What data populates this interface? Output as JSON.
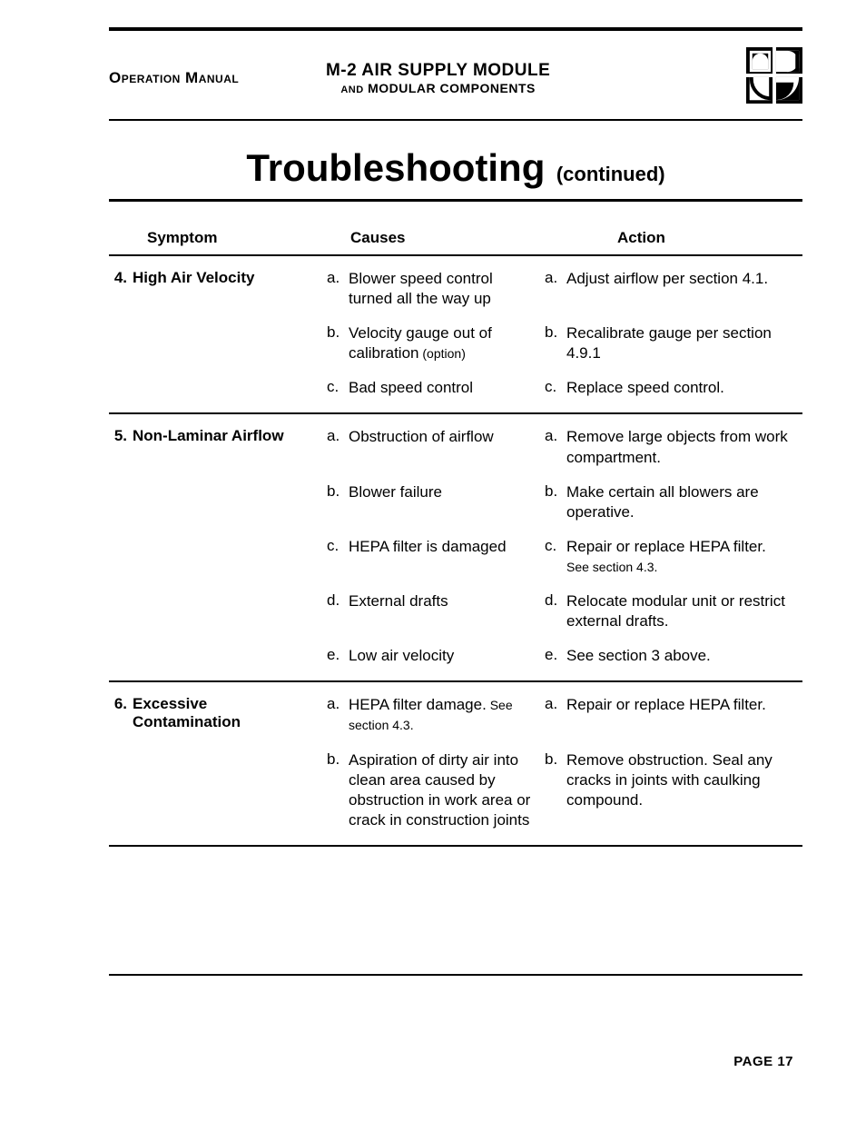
{
  "header": {
    "left": "Operation Manual",
    "center_line1": "M-2 AIR SUPPLY MODULE",
    "center_line2_and": "AND",
    "center_line2_rest": " MODULAR COMPONENTS"
  },
  "title": {
    "main": "Troubleshooting",
    "suffix": "(continued)"
  },
  "columns": {
    "symptom": "Symptom",
    "causes": "Causes",
    "action": "Action"
  },
  "sections": [
    {
      "num": "4.",
      "symptom": "High Air Velocity",
      "rows": [
        {
          "letter": "a.",
          "cause": "Blower speed control turned all the way up",
          "action": "Adjust airflow per section 4.1."
        },
        {
          "letter": "b.",
          "cause": "Velocity gauge out of calibration",
          "cause_note": " (option)",
          "action": "Recalibrate gauge per section 4.9.1"
        },
        {
          "letter": "c.",
          "cause": "Bad speed control",
          "action": "Replace speed control."
        }
      ]
    },
    {
      "num": "5.",
      "symptom": "Non-Laminar Airflow",
      "rows": [
        {
          "letter": "a.",
          "cause": "Obstruction of airflow",
          "action": "Remove large objects from work compartment."
        },
        {
          "letter": "b.",
          "cause": "Blower failure",
          "action": "Make certain all blowers are operative."
        },
        {
          "letter": "c.",
          "cause": "HEPA filter is damaged",
          "action": "Repair or replace HEPA filter.",
          "action_note": " See section 4.3."
        },
        {
          "letter": "d.",
          "cause": "External drafts",
          "action": "Relocate modular unit or restrict external drafts."
        },
        {
          "letter": "e.",
          "cause": "Low air velocity",
          "action": "See section 3 above."
        }
      ]
    },
    {
      "num": "6.",
      "symptom": "Excessive Contamination",
      "rows": [
        {
          "letter": "a.",
          "cause": "HEPA filter damage.",
          "cause_note": " See section 4.3.",
          "action": "Repair or replace HEPA filter."
        },
        {
          "letter": "b.",
          "cause": "Aspiration of dirty air into clean area caused by obstruction in work area or crack in construction joints",
          "action": "Remove obstruction. Seal any cracks in joints with caulking compound."
        }
      ]
    }
  ],
  "page": "PAGE 17",
  "style": {
    "page_bg": "#ffffff",
    "text_color": "#000000",
    "rule_thick": 4,
    "rule_med": 3,
    "rule_thin": 2,
    "body_fontsize": 17,
    "title_fontsize": 42,
    "subtitle_fontsize": 22,
    "small_fontsize": 14
  }
}
